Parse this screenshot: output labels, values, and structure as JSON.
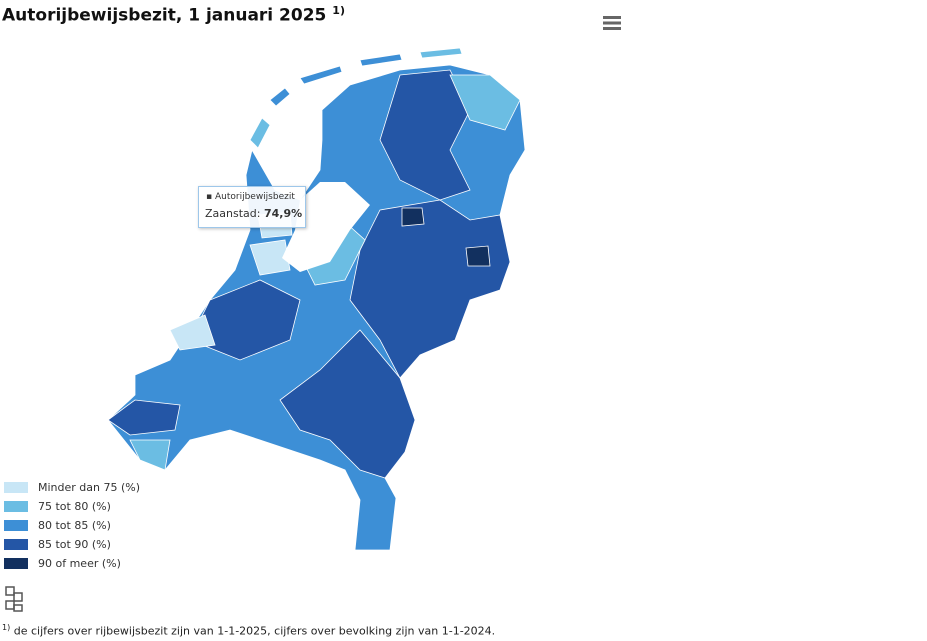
{
  "header": {
    "title": "Autorijbewijsbezit, 1 januari 2025",
    "title_note": "1)"
  },
  "tooltip": {
    "series": "Autorijbewijsbezit",
    "label": "Zaanstad:",
    "value": {
      "value": 74.9,
      "label": "74,9%"
    }
  },
  "legend": [
    {
      "label": "Minder dan 75 (%)",
      "color": "#c8e6f6"
    },
    {
      "label": "75 tot 80 (%)",
      "color": "#6bbde3"
    },
    {
      "label": "80 tot 85 (%)",
      "color": "#3d8fd6"
    },
    {
      "label": "85 tot 90 (%)",
      "color": "#2456a6"
    },
    {
      "label": "90 of meer (%)",
      "color": "#12305f"
    }
  ],
  "footnote": {
    "marker": "1)",
    "text": "de cijfers over rijbewijsbezit zijn van 1-1-2025, cijfers over bevolking zijn van 1-1-2024."
  }
}
